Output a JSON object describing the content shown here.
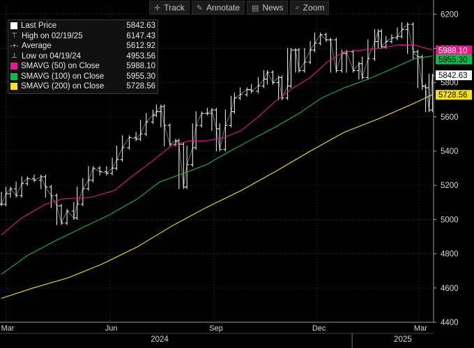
{
  "toolbar": {
    "track": {
      "label": "Track",
      "icon": "crosshair-icon"
    },
    "annotate": {
      "label": "Annotate",
      "icon": "pencil-icon"
    },
    "news": {
      "label": "News",
      "icon": "news-icon"
    },
    "zoom": {
      "label": "Zoom",
      "icon": "magnifier-icon"
    }
  },
  "legend": [
    {
      "label": "Last Price",
      "value": "5842.63",
      "color": "#ffffff",
      "marker": "square"
    },
    {
      "label": "High on 02/19/25",
      "value": "6147.43",
      "color": "#cccccc",
      "marker": "high"
    },
    {
      "label": "Average",
      "value": "5612.92",
      "color": "#cccccc",
      "marker": "average"
    },
    {
      "label": "Low on 04/19/24",
      "value": "4953.56",
      "color": "#cccccc",
      "marker": "low"
    },
    {
      "label": "SMAVG (50)  on Close",
      "value": "5988.10",
      "color": "#e4198a",
      "marker": "square"
    },
    {
      "label": "SMAVG (100)  on Close",
      "value": "5955.30",
      "color": "#12b84a",
      "marker": "square"
    },
    {
      "label": "SMAVG (200)  on Close",
      "value": "5728.56",
      "color": "#f7e21c",
      "marker": "square"
    }
  ],
  "chart_data": {
    "type": "line",
    "title": "",
    "xlabel": "",
    "ylabel": "",
    "ylim": [
      4400,
      6250
    ],
    "yticks": [
      4400,
      4600,
      4800,
      5000,
      5200,
      5400,
      5600,
      5800,
      6000,
      6200
    ],
    "xlim": [
      "2024-02-26",
      "2025-03-14"
    ],
    "x_ticks": [
      {
        "label": "Mar",
        "date": "2024-03-01"
      },
      {
        "label": "Jun",
        "date": "2024-06-01"
      },
      {
        "label": "Sep",
        "date": "2024-09-01"
      },
      {
        "label": "Dec",
        "date": "2024-12-01"
      },
      {
        "label": "Mar",
        "date": "2025-03-01"
      }
    ],
    "year_labels": [
      {
        "label": "2024",
        "date": "2024-07-15"
      },
      {
        "label": "2025",
        "date": "2025-02-15"
      }
    ],
    "year_boundary": "2025-01-01",
    "grid": true,
    "legend_position": "top-left",
    "series": [
      {
        "name": "Last Price",
        "color": "#ffffff",
        "style": "bar",
        "points": [
          [
            "2024-02-26",
            5090
          ],
          [
            "2024-03-01",
            5150
          ],
          [
            "2024-03-05",
            5180
          ],
          [
            "2024-03-10",
            5140
          ],
          [
            "2024-03-15",
            5210
          ],
          [
            "2024-03-20",
            5240
          ],
          [
            "2024-03-26",
            5230
          ],
          [
            "2024-04-01",
            5250
          ],
          [
            "2024-04-05",
            5190
          ],
          [
            "2024-04-10",
            5140
          ],
          [
            "2024-04-15",
            5080
          ],
          [
            "2024-04-19",
            4980
          ],
          [
            "2024-04-24",
            5050
          ],
          [
            "2024-04-30",
            5010
          ],
          [
            "2024-05-03",
            5090
          ],
          [
            "2024-05-08",
            5180
          ],
          [
            "2024-05-13",
            5230
          ],
          [
            "2024-05-17",
            5300
          ],
          [
            "2024-05-23",
            5280
          ],
          [
            "2024-05-29",
            5270
          ],
          [
            "2024-06-03",
            5300
          ],
          [
            "2024-06-07",
            5350
          ],
          [
            "2024-06-12",
            5420
          ],
          [
            "2024-06-18",
            5480
          ],
          [
            "2024-06-24",
            5470
          ],
          [
            "2024-06-28",
            5500
          ],
          [
            "2024-07-03",
            5570
          ],
          [
            "2024-07-09",
            5610
          ],
          [
            "2024-07-12",
            5630
          ],
          [
            "2024-07-16",
            5660
          ],
          [
            "2024-07-19",
            5550
          ],
          [
            "2024-07-24",
            5440
          ],
          [
            "2024-07-29",
            5460
          ],
          [
            "2024-08-01",
            5440
          ],
          [
            "2024-08-05",
            5190
          ],
          [
            "2024-08-08",
            5320
          ],
          [
            "2024-08-13",
            5420
          ],
          [
            "2024-08-16",
            5550
          ],
          [
            "2024-08-21",
            5620
          ],
          [
            "2024-08-26",
            5620
          ],
          [
            "2024-08-30",
            5640
          ],
          [
            "2024-09-03",
            5530
          ],
          [
            "2024-09-06",
            5410
          ],
          [
            "2024-09-11",
            5550
          ],
          [
            "2024-09-16",
            5630
          ],
          [
            "2024-09-19",
            5710
          ],
          [
            "2024-09-24",
            5730
          ],
          [
            "2024-09-30",
            5760
          ],
          [
            "2024-10-04",
            5750
          ],
          [
            "2024-10-10",
            5780
          ],
          [
            "2024-10-15",
            5820
          ],
          [
            "2024-10-18",
            5860
          ],
          [
            "2024-10-23",
            5800
          ],
          [
            "2024-10-28",
            5830
          ],
          [
            "2024-10-31",
            5710
          ],
          [
            "2024-11-05",
            5780
          ],
          [
            "2024-11-08",
            5990
          ],
          [
            "2024-11-12",
            5990
          ],
          [
            "2024-11-15",
            5870
          ],
          [
            "2024-11-20",
            5920
          ],
          [
            "2024-11-25",
            5990
          ],
          [
            "2024-11-29",
            6030
          ],
          [
            "2024-12-04",
            6080
          ],
          [
            "2024-12-09",
            6050
          ],
          [
            "2024-12-13",
            6050
          ],
          [
            "2024-12-18",
            5870
          ],
          [
            "2024-12-23",
            5970
          ],
          [
            "2024-12-27",
            5980
          ],
          [
            "2025-01-02",
            5870
          ],
          [
            "2025-01-07",
            5910
          ],
          [
            "2025-01-10",
            5830
          ],
          [
            "2025-01-15",
            5940
          ],
          [
            "2025-01-21",
            6040
          ],
          [
            "2025-01-24",
            6100
          ],
          [
            "2025-01-27",
            6010
          ],
          [
            "2025-01-31",
            6040
          ],
          [
            "2025-02-05",
            6060
          ],
          [
            "2025-02-10",
            6070
          ],
          [
            "2025-02-14",
            6110
          ],
          [
            "2025-02-19",
            6140
          ],
          [
            "2025-02-24",
            5980
          ],
          [
            "2025-02-28",
            5950
          ],
          [
            "2025-03-04",
            5780
          ],
          [
            "2025-03-07",
            5770
          ],
          [
            "2025-03-10",
            5640
          ],
          [
            "2025-03-13",
            5840
          ]
        ]
      },
      {
        "name": "SMAVG (50)  on Close",
        "color": "#e4198a",
        "style": "line",
        "points": [
          [
            "2024-02-26",
            4910
          ],
          [
            "2024-03-15",
            5010
          ],
          [
            "2024-04-05",
            5090
          ],
          [
            "2024-04-20",
            5120
          ],
          [
            "2024-05-15",
            5130
          ],
          [
            "2024-06-05",
            5170
          ],
          [
            "2024-06-20",
            5250
          ],
          [
            "2024-07-10",
            5350
          ],
          [
            "2024-07-25",
            5430
          ],
          [
            "2024-08-10",
            5460
          ],
          [
            "2024-08-25",
            5460
          ],
          [
            "2024-09-10",
            5480
          ],
          [
            "2024-09-25",
            5520
          ],
          [
            "2024-10-10",
            5600
          ],
          [
            "2024-10-25",
            5690
          ],
          [
            "2024-11-10",
            5770
          ],
          [
            "2024-11-25",
            5830
          ],
          [
            "2024-12-10",
            5920
          ],
          [
            "2024-12-25",
            5980
          ],
          [
            "2025-01-10",
            5990
          ],
          [
            "2025-01-25",
            6000
          ],
          [
            "2025-02-10",
            6020
          ],
          [
            "2025-02-25",
            6020
          ],
          [
            "2025-03-13",
            5990
          ]
        ]
      },
      {
        "name": "SMAVG (100)  on Close",
        "color": "#12b84a",
        "style": "line",
        "points": [
          [
            "2024-02-26",
            4680
          ],
          [
            "2024-03-20",
            4790
          ],
          [
            "2024-04-15",
            4880
          ],
          [
            "2024-05-10",
            4960
          ],
          [
            "2024-06-01",
            5030
          ],
          [
            "2024-06-25",
            5120
          ],
          [
            "2024-07-15",
            5220
          ],
          [
            "2024-08-05",
            5270
          ],
          [
            "2024-08-25",
            5320
          ],
          [
            "2024-09-15",
            5400
          ],
          [
            "2024-10-05",
            5470
          ],
          [
            "2024-10-25",
            5540
          ],
          [
            "2024-11-15",
            5620
          ],
          [
            "2024-12-05",
            5710
          ],
          [
            "2024-12-25",
            5770
          ],
          [
            "2025-01-15",
            5820
          ],
          [
            "2025-02-05",
            5880
          ],
          [
            "2025-02-25",
            5940
          ],
          [
            "2025-03-13",
            5955
          ]
        ]
      },
      {
        "name": "SMAVG (200)  on Close",
        "color": "#f7e21c",
        "style": "line",
        "points": [
          [
            "2024-02-26",
            4540
          ],
          [
            "2024-03-25",
            4600
          ],
          [
            "2024-04-25",
            4660
          ],
          [
            "2024-05-25",
            4740
          ],
          [
            "2024-06-25",
            4840
          ],
          [
            "2024-07-25",
            4960
          ],
          [
            "2024-08-25",
            5070
          ],
          [
            "2024-09-25",
            5170
          ],
          [
            "2024-10-25",
            5280
          ],
          [
            "2024-11-25",
            5400
          ],
          [
            "2024-12-25",
            5510
          ],
          [
            "2025-01-25",
            5590
          ],
          [
            "2025-02-25",
            5680
          ],
          [
            "2025-03-13",
            5730
          ]
        ]
      }
    ],
    "price_tags": [
      {
        "series": "SMAVG (50)  on Close",
        "value": 5988.1,
        "text": "5988.10",
        "bg": "#e4198a",
        "fg": "#ffffff"
      },
      {
        "series": "SMAVG (100)  on Close",
        "value": 5955.3,
        "text": "5955.30",
        "bg": "#12b84a",
        "fg": "#000000"
      },
      {
        "series": "Last Price",
        "value": 5842.63,
        "text": "5842.63",
        "bg": "#ffffff",
        "fg": "#000000"
      },
      {
        "series": "SMAVG (200)  on Close",
        "value": 5728.56,
        "text": "5728.56",
        "bg": "#f7e21c",
        "fg": "#000000"
      }
    ]
  }
}
